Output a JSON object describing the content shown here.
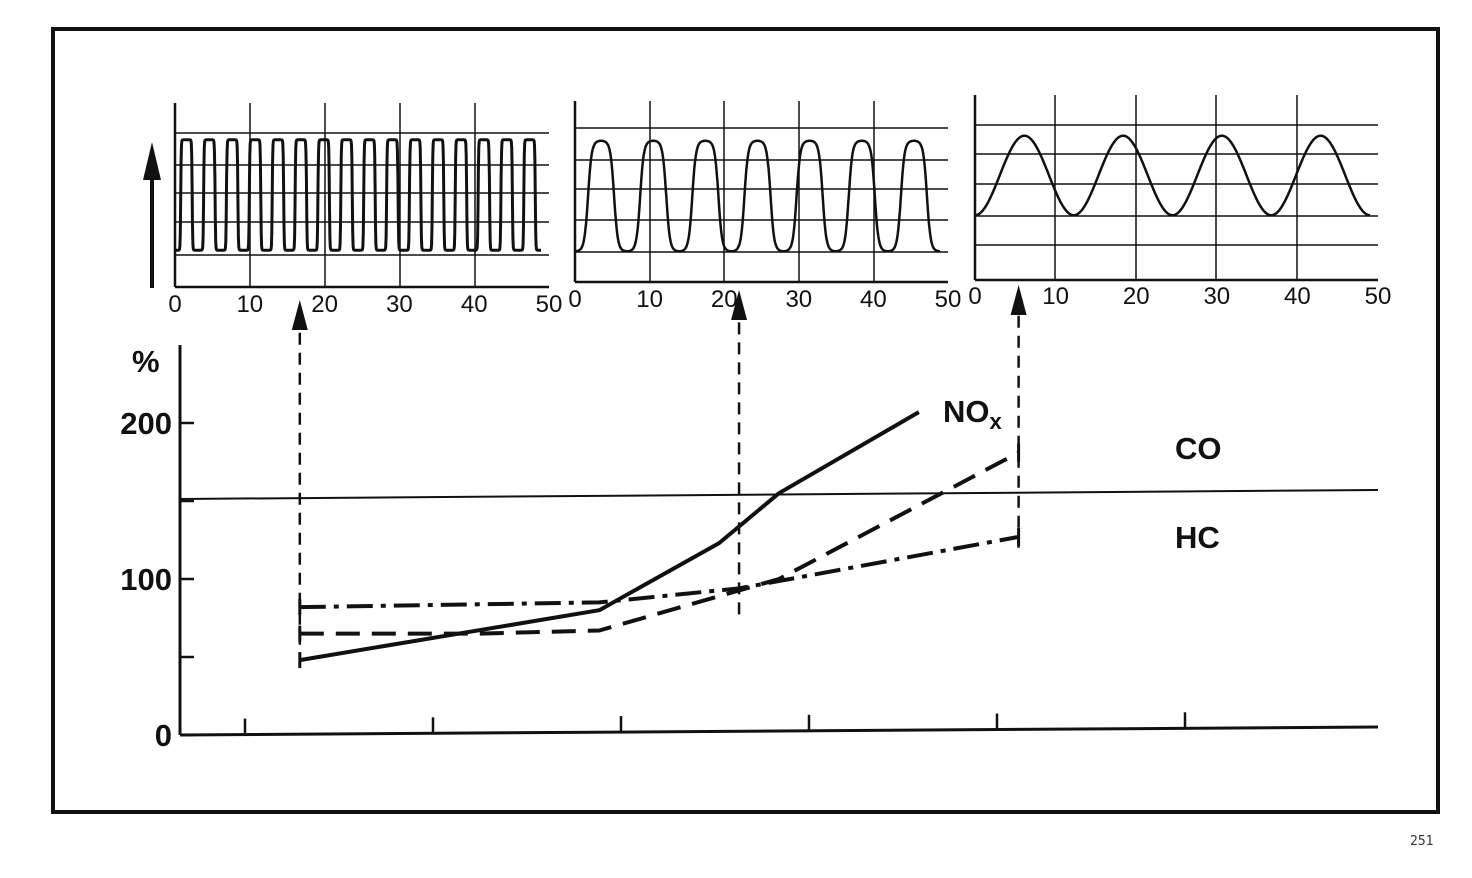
{
  "page_number": "251",
  "chart_data": [
    {
      "type": "line",
      "panel": "left",
      "x_ticks": [
        "0",
        "10",
        "20",
        "30",
        "40",
        "50"
      ],
      "xlim": [
        0,
        50
      ],
      "ylim": [
        0,
        1
      ],
      "y_axis_arrow": true,
      "signal": {
        "shape": "square-wave",
        "cycles": 16,
        "low": 0.2,
        "high": 0.8
      }
    },
    {
      "type": "line",
      "panel": "middle",
      "x_ticks": [
        "0",
        "10",
        "20",
        "30",
        "40",
        "50"
      ],
      "xlim": [
        0,
        50
      ],
      "ylim": [
        0,
        1
      ],
      "signal": {
        "shape": "rounded-wave",
        "cycles": 7,
        "low": 0.17,
        "high": 0.78
      }
    },
    {
      "type": "line",
      "panel": "right",
      "x_ticks": [
        "0",
        "10",
        "20",
        "30",
        "40",
        "50"
      ],
      "xlim": [
        0,
        50
      ],
      "ylim": [
        0,
        1
      ],
      "signal": {
        "shape": "sine",
        "cycles": 4,
        "low": 0.35,
        "high": 0.78
      }
    },
    {
      "type": "line",
      "panel": "main",
      "ylabel": "%",
      "y_ticks": [
        "0",
        "100",
        "200"
      ],
      "ylim": [
        0,
        250
      ],
      "xlim": [
        0,
        6
      ],
      "x_tick_count": 6,
      "reference_line": 155,
      "series": [
        {
          "name": "NOx",
          "style": "solid",
          "x": [
            0.6,
            2.1,
            2.7,
            3.0,
            3.7
          ],
          "y": [
            48,
            80,
            123,
            155,
            207
          ]
        },
        {
          "name": "CO",
          "style": "dashed",
          "x": [
            0.6,
            1.5,
            2.1,
            3.0,
            4.2
          ],
          "y": [
            65,
            65,
            67,
            100,
            181
          ]
        },
        {
          "name": "HC",
          "style": "dash-dot",
          "x": [
            0.6,
            2.1,
            2.8,
            4.2
          ],
          "y": [
            82,
            85,
            94,
            127
          ]
        }
      ],
      "guide_lines_x": [
        0.6,
        2.8,
        4.2
      ]
    }
  ]
}
